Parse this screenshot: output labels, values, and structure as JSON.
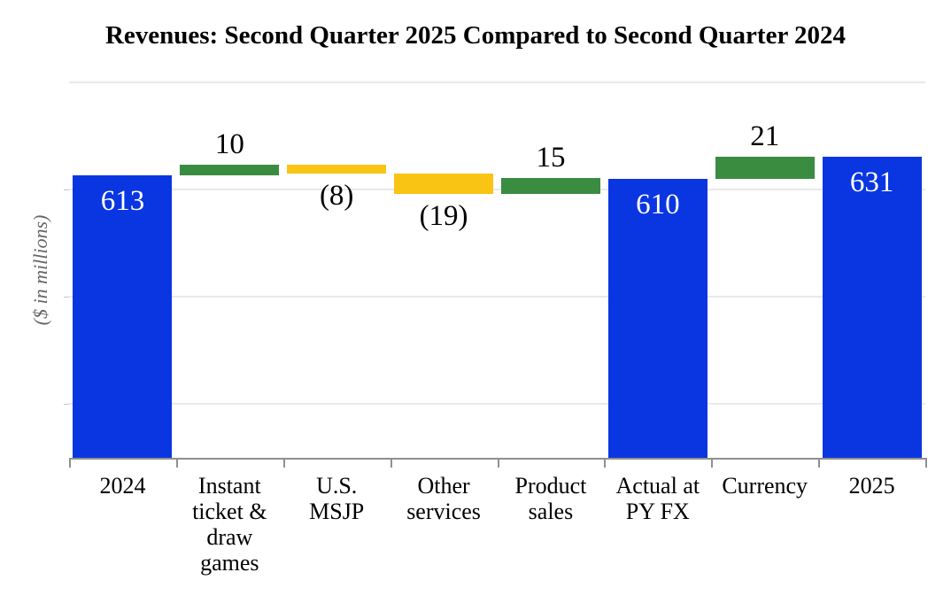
{
  "title": "Revenues: Second Quarter 2025 Compared to Second Quarter 2024",
  "colors": {
    "total_bar": "#0a36e2",
    "increase_bar": "#3a8c40",
    "decrease_bar": "#f9c413",
    "gridline": "#e9e9e9",
    "axis": "#8f8f8f",
    "y_axis_label_text": "#666666",
    "inside_label_text": "#ffffff",
    "outside_label_text": "#000000"
  },
  "chart_data": {
    "type": "bar",
    "subtype": "waterfall",
    "title": "Revenues: Second Quarter 2025 Compared to Second Quarter 2024",
    "xlabel": "",
    "ylabel": "($ in millions)",
    "ylim": [
      350,
      700
    ],
    "gridline_values": [
      400,
      500,
      600,
      700
    ],
    "grid": true,
    "legend": "none",
    "y_tick_labels_shown": false,
    "categories": [
      "2024",
      "Instant ticket & draw games",
      "U.S. MSJP",
      "Other services",
      "Product sales",
      "Actual at PY FX",
      "Currency",
      "2025"
    ],
    "bars": [
      {
        "category": "2024",
        "kind": "total",
        "value": 613,
        "start": 350,
        "end": 613,
        "label": "613",
        "label_text": "613",
        "label_position": "inside"
      },
      {
        "category": "Instant ticket & draw games",
        "kind": "increase",
        "value": 10,
        "start": 613,
        "end": 623,
        "label": "10",
        "label_position": "above"
      },
      {
        "category": "U.S. MSJP",
        "kind": "decrease",
        "value": -8,
        "start": 623,
        "end": 615,
        "label": "(8)",
        "label_position": "below"
      },
      {
        "category": "Other services",
        "kind": "decrease",
        "value": -19,
        "start": 615,
        "end": 596,
        "label": "(19)",
        "label_position": "below"
      },
      {
        "category": "Product sales",
        "kind": "increase",
        "value": 15,
        "start": 596,
        "end": 611,
        "label": "15",
        "label_position": "above"
      },
      {
        "category": "Actual at PY FX",
        "kind": "total",
        "value": 610,
        "start": 350,
        "end": 610,
        "label": "610",
        "label_position": "inside"
      },
      {
        "category": "Currency",
        "kind": "increase",
        "value": 21,
        "start": 610,
        "end": 631,
        "label": "21",
        "label_position": "above"
      },
      {
        "category": "2025",
        "kind": "total",
        "value": 631,
        "start": 350,
        "end": 631,
        "label": "631",
        "label_position": "inside"
      }
    ],
    "category_label_lines": [
      [
        "2024"
      ],
      [
        "Instant",
        "ticket &",
        "draw",
        "games"
      ],
      [
        "U.S.",
        "MSJP"
      ],
      [
        "Other",
        "services"
      ],
      [
        "Product",
        "sales"
      ],
      [
        "Actual at",
        "PY FX"
      ],
      [
        "Currency"
      ],
      [
        "2025"
      ]
    ]
  }
}
